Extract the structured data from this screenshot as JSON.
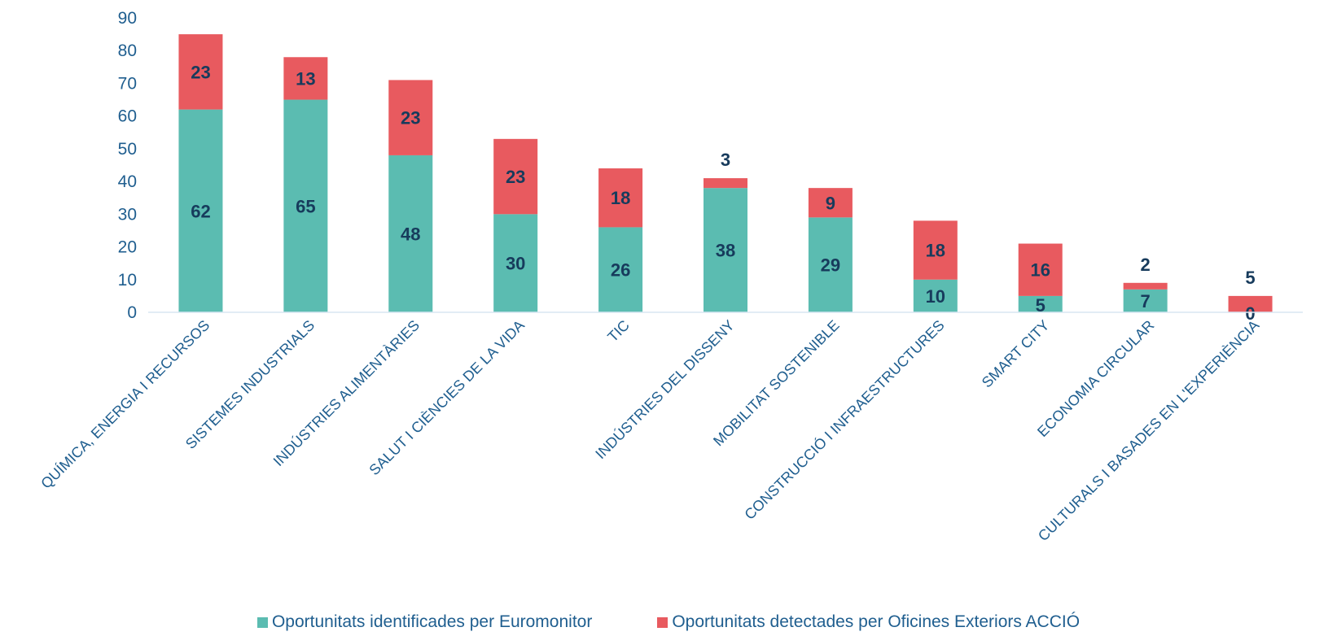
{
  "chart_data": {
    "type": "bar",
    "stacked": true,
    "categories": [
      "QUÍMICA, ENERGIA I RECURSOS",
      "SISTEMES INDUSTRIALS",
      "INDÚSTRIES ALIMENTÀRIES",
      "SALUT I CIÈNCIES DE LA VIDA",
      "TIC",
      "INDÚSTRIES DEL DISSENY",
      "MOBILITAT SOSTENIBLE",
      "CONSTRUCCIÓ I INFRAESTRUCTURES",
      "SMART CITY",
      "ECONOMIA CIRCULAR",
      "CULTURALS I BASADES EN L'EXPERIÈNCIA"
    ],
    "series": [
      {
        "name": "Oportunitats identificades per Euromonitor",
        "color": "#5bbcb1",
        "values": [
          62,
          65,
          48,
          30,
          26,
          38,
          29,
          10,
          5,
          7,
          0
        ]
      },
      {
        "name": "Oportunitats detectades per Oficines Exteriors ACCIÓ",
        "color": "#e85a5f",
        "values": [
          23,
          13,
          23,
          23,
          18,
          3,
          9,
          18,
          16,
          2,
          5
        ]
      }
    ],
    "ylim": [
      0,
      90
    ],
    "yticks": [
      0,
      10,
      20,
      30,
      40,
      50,
      60,
      70,
      80,
      90
    ],
    "grid": false,
    "legend_position": "bottom",
    "axis_text_color": "#1f5e8f",
    "label_color": "#173b5c"
  }
}
